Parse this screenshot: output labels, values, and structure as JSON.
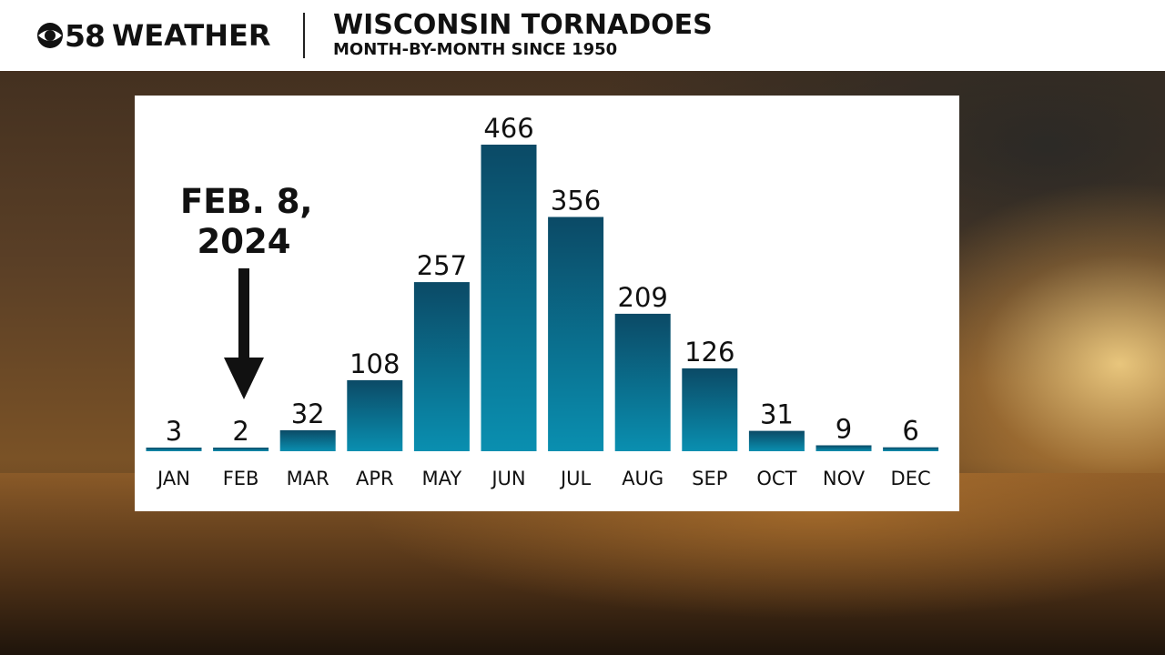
{
  "header": {
    "logo_number": "58",
    "logo_word": "WEATHER",
    "title": "WISCONSIN TORNADOES",
    "subtitle": "MONTH-BY-MONTH SINCE 1950"
  },
  "annotation": {
    "line1": "FEB. 8,",
    "line2": "2024",
    "target_category": "FEB"
  },
  "colors": {
    "bar_top": "#0b4a66",
    "bar_bottom": "#0a8fb0",
    "text": "#111111"
  },
  "chart_data": {
    "type": "bar",
    "title": "WISCONSIN TORNADOES",
    "subtitle": "MONTH-BY-MONTH SINCE 1950",
    "categories": [
      "JAN",
      "FEB",
      "MAR",
      "APR",
      "MAY",
      "JUN",
      "JUL",
      "AUG",
      "SEP",
      "OCT",
      "NOV",
      "DEC"
    ],
    "values": [
      3,
      2,
      32,
      108,
      257,
      466,
      356,
      209,
      126,
      31,
      9,
      6
    ],
    "xlabel": "",
    "ylabel": "",
    "ylim": [
      0,
      466
    ],
    "grid": false,
    "data_labels": true
  }
}
